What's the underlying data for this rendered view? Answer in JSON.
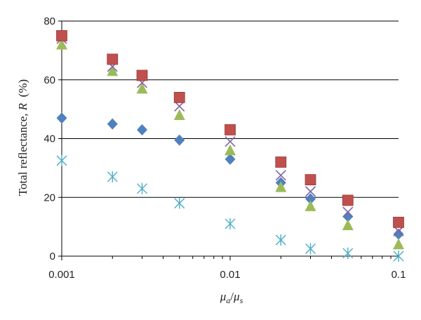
{
  "chart_data": {
    "type": "scatter",
    "xscale": "log",
    "xlim": [
      0.001,
      0.1
    ],
    "ylim": [
      0,
      80
    ],
    "grid": "horizontal",
    "xlabel": {
      "mu": "μ",
      "a": "a",
      "slash": "/",
      "s": "s"
    },
    "ylabel": {
      "pre": "Total reflectance, ",
      "var": "R",
      "post": "  (%)"
    },
    "xticks": [
      "0.001",
      "0.01",
      "0.1"
    ],
    "yticks": [
      "0",
      "20",
      "40",
      "60",
      "80"
    ],
    "series": [
      {
        "marker": "square",
        "color": "#c0504d",
        "x": [
          0.001,
          0.002,
          0.003,
          0.005,
          0.01,
          0.02,
          0.03,
          0.05,
          0.1
        ],
        "y": [
          75,
          67,
          61.5,
          54,
          43,
          32,
          26,
          19,
          11.5
        ]
      },
      {
        "marker": "x",
        "color": "#8064a2",
        "x": [
          0.001,
          0.002,
          0.003,
          0.005,
          0.01,
          0.02,
          0.03,
          0.05,
          0.1
        ],
        "y": [
          74,
          64.5,
          59,
          51,
          39,
          27.5,
          22,
          15,
          8.5
        ]
      },
      {
        "marker": "triangle",
        "color": "#9bbb59",
        "x": [
          0.001,
          0.002,
          0.003,
          0.005,
          0.01,
          0.02,
          0.03,
          0.05,
          0.1
        ],
        "y": [
          72,
          63,
          57,
          48,
          36,
          23.5,
          17,
          10.5,
          4
        ]
      },
      {
        "marker": "diamond",
        "color": "#4f81bd",
        "x": [
          0.001,
          0.002,
          0.003,
          0.005,
          0.01,
          0.02,
          0.03,
          0.05,
          0.1
        ],
        "y": [
          47,
          45,
          43,
          39.5,
          33,
          25,
          19.5,
          13.5,
          7.5
        ]
      },
      {
        "marker": "star",
        "color": "#4bacc6",
        "x": [
          0.001,
          0.002,
          0.003,
          0.005,
          0.01,
          0.02,
          0.03,
          0.05,
          0.1
        ],
        "y": [
          32.5,
          27,
          23,
          18,
          11,
          5.5,
          2.5,
          1,
          0
        ]
      }
    ]
  }
}
